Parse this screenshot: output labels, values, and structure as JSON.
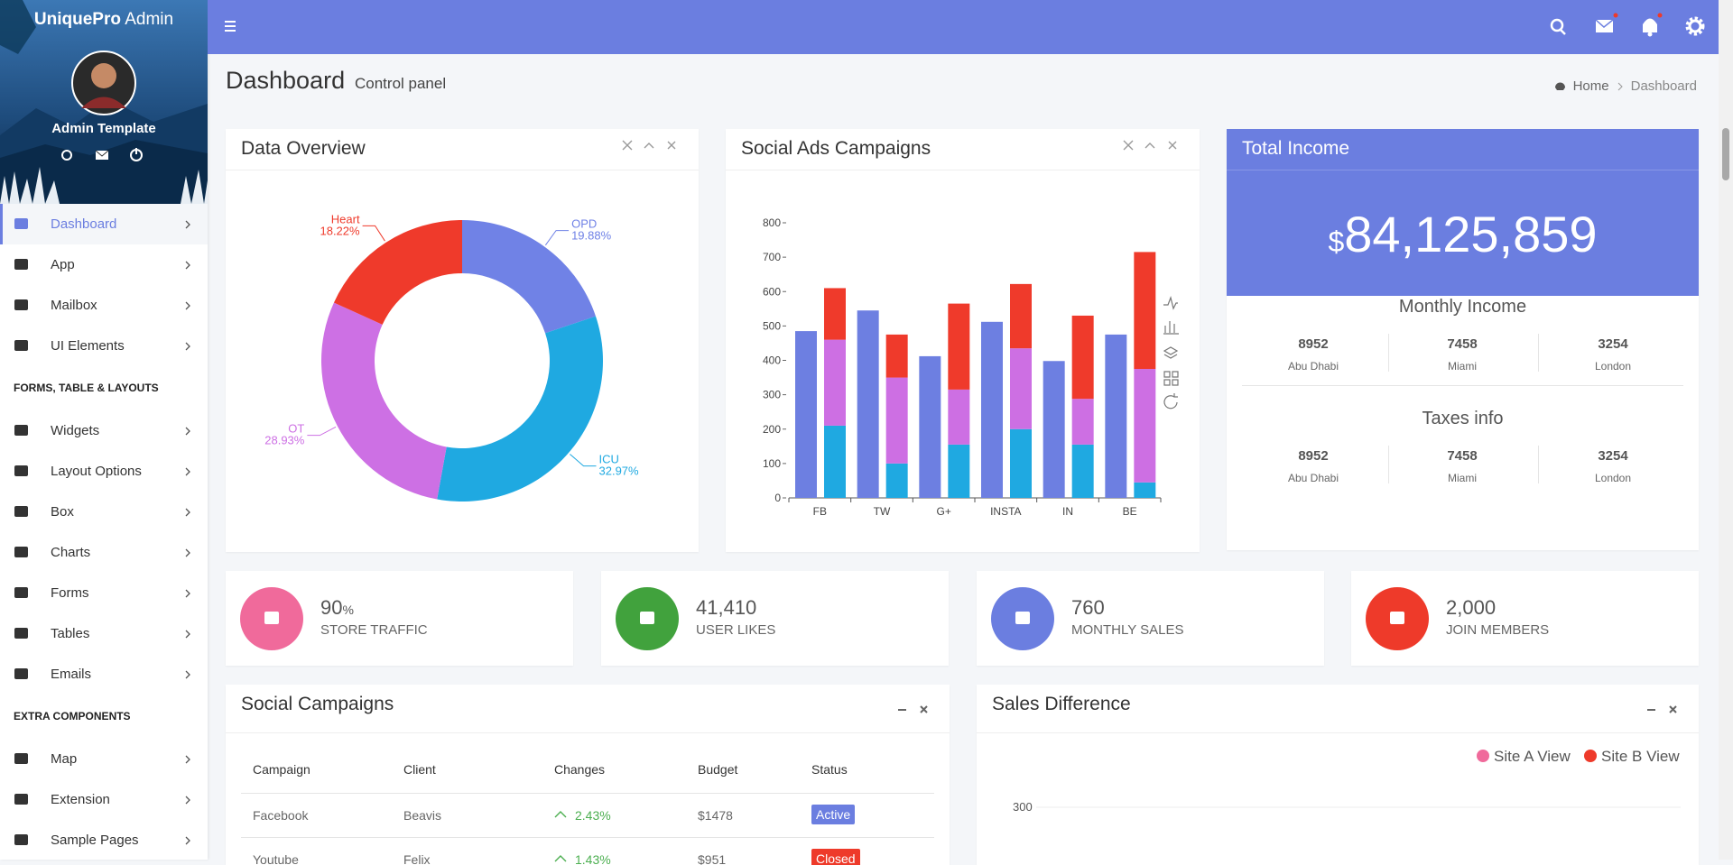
{
  "sidebar": {
    "brand_bold": "UniquePro",
    "brand_rest": "Admin",
    "user": "Admin Template",
    "menu_groups": [
      {
        "items": [
          {
            "label": "Dashboard",
            "active": true
          },
          {
            "label": "App"
          },
          {
            "label": "Mailbox"
          },
          {
            "label": "UI Elements"
          }
        ]
      },
      {
        "heading": "FORMS, TABLE & LAYOUTS",
        "items": [
          {
            "label": "Widgets"
          },
          {
            "label": "Layout Options"
          },
          {
            "label": "Box"
          },
          {
            "label": "Charts"
          },
          {
            "label": "Forms"
          },
          {
            "label": "Tables"
          },
          {
            "label": "Emails"
          }
        ]
      },
      {
        "heading": "EXTRA COMPONENTS",
        "items": [
          {
            "label": "Map"
          },
          {
            "label": "Extension"
          },
          {
            "label": "Sample Pages"
          }
        ]
      }
    ]
  },
  "header": {
    "title": "Dashboard",
    "subtitle": "Control panel",
    "breadcrumb": [
      "Home",
      "Dashboard"
    ]
  },
  "data_overview": {
    "title": "Data Overview",
    "type": "pie",
    "categories": [
      "OPD",
      "ICU",
      "OT",
      "Heart"
    ],
    "values": [
      19.88,
      32.97,
      28.93,
      18.22
    ],
    "value_labels": [
      "19.88%",
      "32.97%",
      "28.93%",
      "18.22%"
    ],
    "colors": [
      "#7082e6",
      "#1fa9e1",
      "#cd70e4",
      "#ef3a2b"
    ]
  },
  "social_ads": {
    "title": "Social Ads Campaigns",
    "type": "bar",
    "categories": [
      "FB",
      "TW",
      "G+",
      "INSTA",
      "IN",
      "BE"
    ],
    "series": [
      {
        "color": "#6d7fe1",
        "stacked": false,
        "values": [
          485,
          545,
          412,
          512,
          398,
          475
        ]
      },
      {
        "color": "#1fa9e1",
        "stacked": true,
        "values": [
          210,
          100,
          155,
          200,
          155,
          45
        ]
      },
      {
        "color": "#cd6fe3",
        "stacked": true,
        "values": [
          250,
          250,
          160,
          235,
          133,
          330
        ]
      },
      {
        "color": "#ef3a2b",
        "stacked": true,
        "values": [
          150,
          125,
          250,
          187,
          242,
          340
        ]
      }
    ],
    "ylim": [
      0,
      800
    ],
    "yticks": [
      0,
      100,
      200,
      300,
      400,
      500,
      600,
      700,
      800
    ]
  },
  "income": {
    "title": "Total Income",
    "currency": "$",
    "amount": "84,125,859",
    "groups": [
      {
        "title": "Monthly Income",
        "items": [
          {
            "value": 8952,
            "city": "Abu Dhabi"
          },
          {
            "value": 7458,
            "city": "Miami"
          },
          {
            "value": 3254,
            "city": "London"
          }
        ]
      },
      {
        "title": "Taxes info",
        "items": [
          {
            "value": 8952,
            "city": "Abu Dhabi"
          },
          {
            "value": 7458,
            "city": "Miami"
          },
          {
            "value": 3254,
            "city": "London"
          }
        ]
      }
    ]
  },
  "stats": [
    {
      "value": "90",
      "unit": "%",
      "label": "STORE TRAFFIC",
      "color": "#f06a9b"
    },
    {
      "value": "41,410",
      "label": "USER LIKES",
      "color": "#41a23d"
    },
    {
      "value": "760",
      "label": "MONTHLY SALES",
      "color": "#6b7ee0"
    },
    {
      "value": "2,000",
      "label": "JOIN MEMBERS",
      "color": "#ee3a2a"
    }
  ],
  "social_campaigns": {
    "title": "Social Campaigns",
    "columns": [
      "Campaign",
      "Client",
      "Changes",
      "Budget",
      "Status"
    ],
    "rows": [
      {
        "cells": [
          "Facebook",
          "Beavis",
          "2.43%",
          "$1478",
          "Active"
        ],
        "status_color": "#6b7ee0"
      },
      {
        "cells": [
          "Youtube",
          "Felix",
          "1.43%",
          "$951",
          "Closed"
        ],
        "status_color": "#ee3a2a"
      }
    ]
  },
  "sales_difference": {
    "title": "Sales Difference",
    "type": "line",
    "series": [
      {
        "name": "Site A View",
        "color": "#f06a9b"
      },
      {
        "name": "Site B View",
        "color": "#ee3a2a"
      }
    ],
    "yticks": [
      300
    ]
  }
}
